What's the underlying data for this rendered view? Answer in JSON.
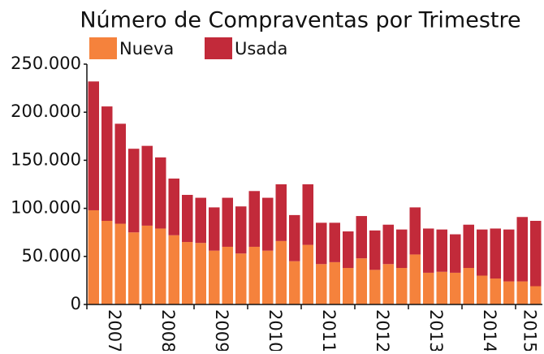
{
  "chart_data": {
    "type": "stacked_bar",
    "title": "Número de Compraventas por Trimestre",
    "categories": [
      "2007",
      null,
      null,
      null,
      "2008",
      null,
      null,
      null,
      "2009",
      null,
      null,
      null,
      "2010",
      null,
      null,
      null,
      "2011",
      null,
      null,
      null,
      "2012",
      null,
      null,
      null,
      "2013",
      null,
      null,
      null,
      "2014",
      null,
      null,
      null,
      "2015",
      null
    ],
    "series": [
      {
        "name": "Nueva",
        "color": "#f5823c",
        "values": [
          98000,
          87000,
          84000,
          75000,
          82000,
          79000,
          72000,
          65000,
          64000,
          56000,
          60000,
          53000,
          60000,
          56000,
          66000,
          45000,
          62000,
          42000,
          44000,
          38000,
          48000,
          36000,
          42000,
          38000,
          52000,
          33000,
          34000,
          33000,
          38000,
          30000,
          27000,
          24000,
          24000,
          19000
        ]
      },
      {
        "name": "Usada",
        "color": "#c22a3a",
        "values": [
          134000,
          119000,
          104000,
          87000,
          83000,
          74000,
          59000,
          49000,
          47000,
          45000,
          51000,
          49000,
          58000,
          55000,
          59000,
          48000,
          63000,
          43000,
          41000,
          38000,
          44000,
          41000,
          41000,
          40000,
          49000,
          46000,
          44000,
          40000,
          45000,
          48000,
          52000,
          54000,
          67000,
          68000
        ]
      }
    ],
    "ylim": [
      0,
      250000
    ],
    "yticks": [
      0,
      {
        "value": 50000,
        "label": "50.000"
      },
      {
        "value": 100000,
        "label": "100.000"
      },
      {
        "value": 150000,
        "label": "150.000"
      },
      {
        "value": 200000,
        "label": "200.000"
      },
      {
        "value": 250000,
        "label": "250.000"
      }
    ],
    "grid": false
  }
}
